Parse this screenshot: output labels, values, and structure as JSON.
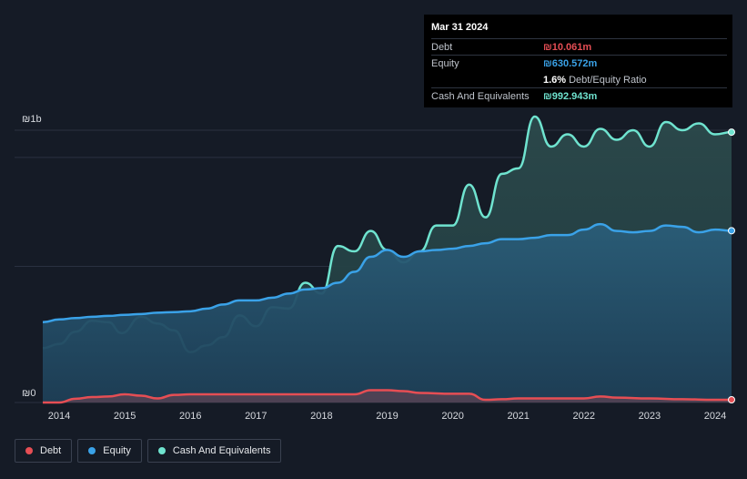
{
  "tooltip": {
    "date": "Mar 31 2024",
    "debt_label": "Debt",
    "debt_value": "₪10.061m",
    "equity_label": "Equity",
    "equity_value": "₪630.572m",
    "ratio_value": "1.6%",
    "ratio_label": "Debt/Equity Ratio",
    "cash_label": "Cash And Equivalents",
    "cash_value": "₪992.943m"
  },
  "legend": [
    {
      "label": "Debt",
      "color": "#e64e54"
    },
    {
      "label": "Equity",
      "color": "#3aa2e8"
    },
    {
      "label": "Cash And Equivalents",
      "color": "#6fe3cf"
    }
  ],
  "chart_data": {
    "type": "area",
    "title": "",
    "xlabel": "",
    "ylabel": "",
    "y_top_label": "₪1b",
    "y_zero_label": "₪0",
    "ylim": [
      0,
      1000
    ],
    "xlim": [
      2013.75,
      2024.25
    ],
    "x_ticks": [
      2014,
      2015,
      2016,
      2017,
      2018,
      2019,
      2020,
      2021,
      2022,
      2023,
      2024
    ],
    "units": "₪ millions",
    "series": [
      {
        "name": "Cash And Equivalents",
        "color": "#6fe3cf",
        "x": [
          2013.75,
          2014.0,
          2014.25,
          2014.5,
          2014.75,
          2014.95,
          2015.25,
          2015.5,
          2015.75,
          2016.0,
          2016.25,
          2016.5,
          2016.75,
          2017.0,
          2017.25,
          2017.5,
          2017.75,
          2018.0,
          2018.25,
          2018.5,
          2018.75,
          2019.0,
          2019.25,
          2019.5,
          2019.75,
          2020.0,
          2020.25,
          2020.5,
          2020.75,
          2021.0,
          2021.25,
          2021.5,
          2021.75,
          2022.0,
          2022.25,
          2022.5,
          2022.75,
          2023.0,
          2023.25,
          2023.5,
          2023.75,
          2024.0,
          2024.25
        ],
        "values": [
          200,
          215,
          260,
          300,
          295,
          255,
          315,
          290,
          265,
          185,
          210,
          240,
          320,
          280,
          350,
          345,
          440,
          400,
          575,
          555,
          630,
          560,
          515,
          555,
          650,
          650,
          800,
          680,
          840,
          860,
          1050,
          940,
          985,
          940,
          1005,
          965,
          1000,
          940,
          1030,
          1000,
          1025,
          985,
          993
        ]
      },
      {
        "name": "Equity",
        "color": "#3aa2e8",
        "x": [
          2013.75,
          2014.0,
          2014.25,
          2014.5,
          2014.75,
          2015.0,
          2015.25,
          2015.5,
          2015.75,
          2016.0,
          2016.25,
          2016.5,
          2016.75,
          2017.0,
          2017.25,
          2017.5,
          2017.75,
          2018.0,
          2018.25,
          2018.5,
          2018.75,
          2019.0,
          2019.25,
          2019.5,
          2019.75,
          2020.0,
          2020.25,
          2020.5,
          2020.75,
          2021.0,
          2021.25,
          2021.5,
          2021.75,
          2022.0,
          2022.25,
          2022.5,
          2022.75,
          2023.0,
          2023.25,
          2023.5,
          2023.75,
          2024.0,
          2024.25
        ],
        "values": [
          295,
          305,
          310,
          315,
          318,
          322,
          325,
          330,
          332,
          335,
          345,
          360,
          375,
          375,
          385,
          400,
          415,
          420,
          440,
          480,
          535,
          560,
          535,
          555,
          560,
          565,
          575,
          585,
          600,
          600,
          605,
          615,
          615,
          635,
          655,
          630,
          625,
          630,
          650,
          645,
          625,
          635,
          631
        ]
      },
      {
        "name": "Debt",
        "color": "#e64e54",
        "x": [
          2013.75,
          2014.0,
          2014.25,
          2014.5,
          2014.75,
          2015.0,
          2015.25,
          2015.5,
          2015.75,
          2016.0,
          2016.5,
          2017.0,
          2017.5,
          2018.0,
          2018.5,
          2018.75,
          2019.0,
          2019.25,
          2019.5,
          2020.0,
          2020.25,
          2020.5,
          2020.75,
          2021.0,
          2021.5,
          2022.0,
          2022.25,
          2022.5,
          2023.0,
          2023.5,
          2024.0,
          2024.25
        ],
        "values": [
          0,
          0,
          14,
          20,
          22,
          30,
          25,
          15,
          28,
          30,
          30,
          30,
          30,
          30,
          30,
          45,
          45,
          42,
          35,
          32,
          32,
          10,
          12,
          15,
          15,
          15,
          22,
          18,
          15,
          12,
          10,
          10
        ]
      }
    ]
  }
}
